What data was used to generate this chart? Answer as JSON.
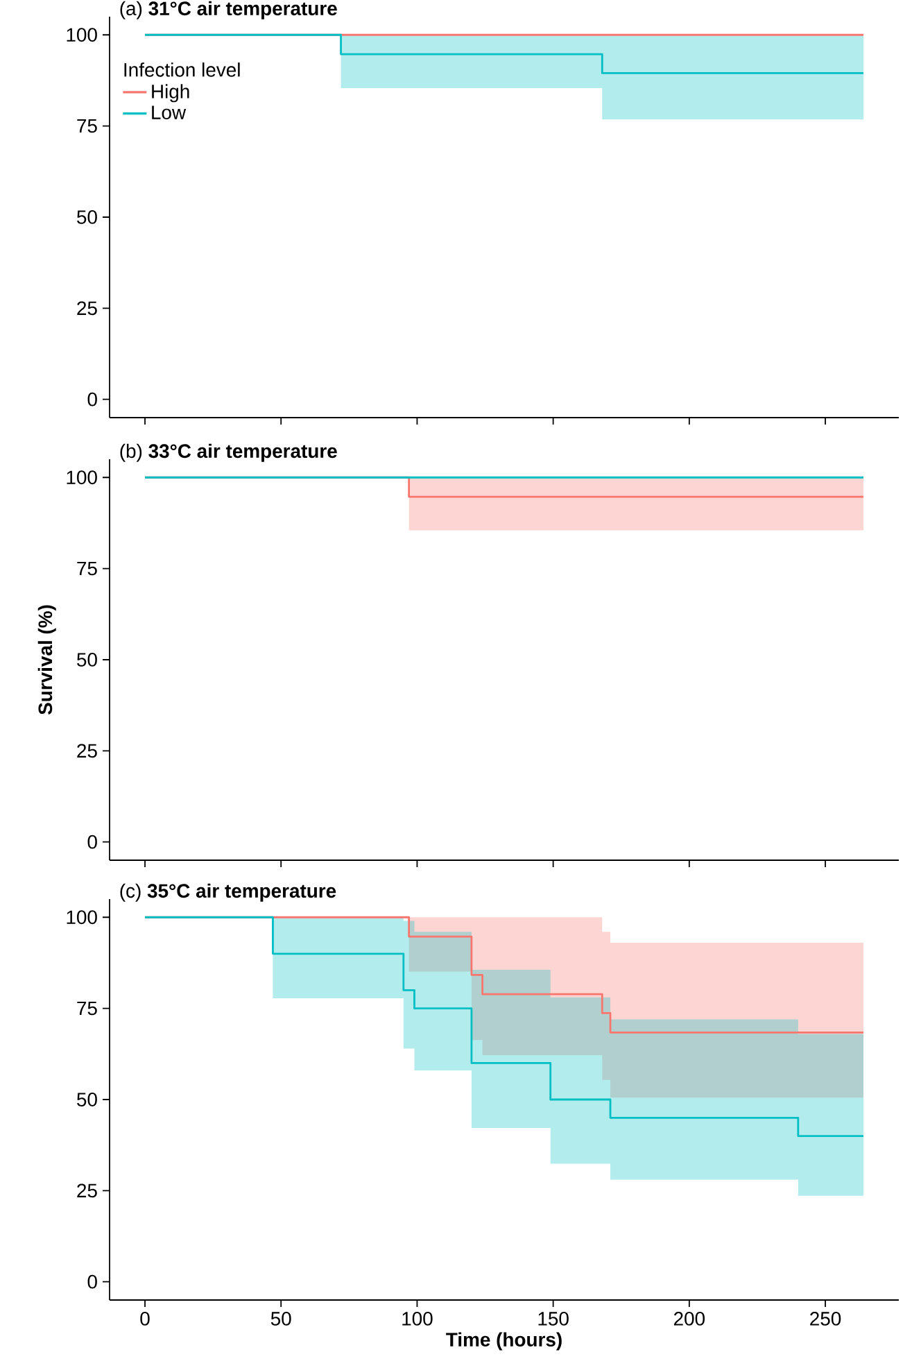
{
  "chart_data": [
    {
      "type": "step",
      "title": "(a) **31°C air temperature**",
      "legend_title": "Infection level",
      "legend": "top left",
      "tick_labels": "y",
      "xlim": [
        -13,
        277
      ],
      "ylim": [
        -5,
        105
      ],
      "xticks": [
        0,
        50,
        100,
        150,
        200,
        250
      ],
      "yticks": [
        0,
        25,
        50,
        75,
        100
      ],
      "series": [
        {
          "name": "High",
          "color": "#f8766d",
          "x": [
            0,
            264
          ],
          "values": [
            100,
            100
          ]
        },
        {
          "name": "Low",
          "color": "#00bfc4",
          "x": [
            0,
            72,
            168,
            264
          ],
          "values": [
            100,
            94.7,
            89.5,
            89.5
          ],
          "lower": [
            null,
            85.4,
            76.8,
            76.8
          ],
          "upper": [
            null,
            100,
            100,
            100
          ]
        }
      ]
    },
    {
      "type": "step",
      "title": "(b) **33°C air temperature**",
      "ylabel": "Survival (%)",
      "tick_labels": "y",
      "xlim": [
        -13,
        277
      ],
      "ylim": [
        -5,
        105
      ],
      "xticks": [
        0,
        50,
        100,
        150,
        200,
        250
      ],
      "yticks": [
        0,
        25,
        50,
        75,
        100
      ],
      "series": [
        {
          "color": "#f8766d",
          "x": [
            0,
            97,
            264
          ],
          "values": [
            100,
            94.7,
            94.7
          ],
          "lower": [
            null,
            85.5,
            85.5
          ],
          "upper": [
            null,
            100,
            100
          ]
        },
        {
          "color": "#00bfc4",
          "x": [
            0,
            264
          ],
          "values": [
            100,
            100
          ]
        }
      ]
    },
    {
      "type": "step",
      "title": "(c) **35°C air temperature**",
      "xlabel": "Time (hours)",
      "xlim": [
        -13,
        277
      ],
      "ylim": [
        -5,
        105
      ],
      "xticks": [
        0,
        50,
        100,
        150,
        200,
        250
      ],
      "yticks": [
        0,
        25,
        50,
        75,
        100
      ],
      "series": [
        {
          "color": "#f8766d",
          "x": [
            0,
            97,
            120,
            124,
            168,
            171,
            264
          ],
          "values": [
            100,
            94.7,
            84.2,
            78.9,
            73.7,
            68.4,
            68.4
          ],
          "lower": [
            null,
            85.1,
            66.3,
            62.2,
            55.4,
            50.5,
            50.5
          ],
          "upper": [
            null,
            100,
            100,
            100,
            96,
            93,
            93
          ]
        },
        {
          "color": "#00bfc4",
          "x": [
            0,
            47,
            95,
            99,
            120,
            149,
            171,
            240,
            264
          ],
          "values": [
            100,
            90,
            80,
            75,
            60,
            50,
            45,
            40,
            40
          ],
          "lower": [
            null,
            77.8,
            64,
            58,
            42.2,
            32.4,
            28,
            23.6,
            23.6
          ],
          "upper": [
            null,
            100,
            99,
            96,
            85.6,
            78,
            72,
            68,
            68
          ]
        }
      ]
    }
  ]
}
